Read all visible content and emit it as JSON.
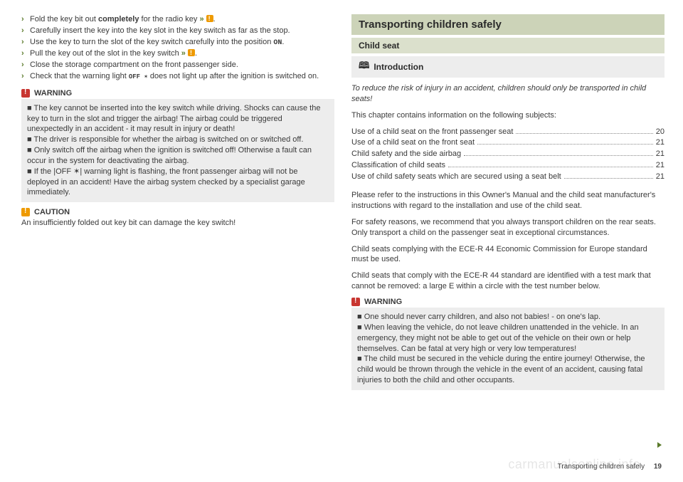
{
  "left": {
    "bullets": [
      {
        "pre": "Fold the key bit out ",
        "bold": "completely",
        "post": " for the radio key ",
        "ref": true,
        "tail": "."
      },
      {
        "pre": "Carefully insert the key into the key slot in the key switch as far as the stop.",
        "bold": "",
        "post": "",
        "ref": false,
        "tail": ""
      },
      {
        "pre": "Use the key to turn the slot of the key switch carefully into the position ",
        "mono": "ON",
        "post": ".",
        "ref": false,
        "tail": ""
      },
      {
        "pre": "Pull the key out of the slot in the key switch ",
        "bold": "",
        "post": "",
        "ref": true,
        "tail": "."
      },
      {
        "pre": "Close the storage compartment on the front passenger side.",
        "bold": "",
        "post": "",
        "ref": false,
        "tail": ""
      },
      {
        "pre": "Check that the warning light ",
        "off": "OFF ✶",
        "post": " does not light up after the ignition is switched on.",
        "ref": false,
        "tail": ""
      }
    ],
    "warning_label": "WARNING",
    "warning_items": [
      "The key cannot be inserted into the key switch while driving. Shocks can cause the key to turn in the slot and trigger the airbag! The airbag could be triggered unexpectedly in an accident - it may result in injury or death!",
      "The driver is responsible for whether the airbag is switched on or switched off.",
      "Only switch off the airbag when the ignition is switched off! Otherwise a fault can occur in the system for deactivating the airbag.",
      "If the |OFF ✶| warning light is flashing, the front passenger airbag will not be deployed in an accident! Have the airbag system checked by a specialist garage immediately."
    ],
    "caution_label": "CAUTION",
    "caution_text": "An insufficiently folded out key bit can damage the key switch!"
  },
  "right": {
    "h1": "Transporting children safely",
    "h2": "Child seat",
    "h3": "Introduction",
    "lead": "To reduce the risk of injury in an accident, children should only be transported in child seats!",
    "toc_intro": "This chapter contains information on the following subjects:",
    "toc": [
      {
        "label": "Use of a child seat on the front passenger seat",
        "page": "20"
      },
      {
        "label": "Use of a child seat on the front seat",
        "page": "21"
      },
      {
        "label": "Child safety and the side airbag",
        "page": "21"
      },
      {
        "label": "Classification of child seats",
        "page": "21"
      },
      {
        "label": "Use of child safety seats which are secured using a seat belt",
        "page": "21"
      }
    ],
    "p1": "Please refer to the instructions in this Owner's Manual and the child seat manufacturer's instructions with regard to the installation and use of the child seat.",
    "p2": "For safety reasons, we recommend that you always transport children on the rear seats. Only transport a child on the passenger seat in exceptional circumstances.",
    "p3": "Child seats complying with the ECE-R 44 Economic Commission for Europe standard must be used.",
    "p4": "Child seats that comply with the ECE-R 44 standard are identified with a test mark that cannot be removed: a large E within a circle with the test number below.",
    "warning_label": "WARNING",
    "warning_items": [
      "One should never carry children, and also not babies! - on one's lap.",
      "When leaving the vehicle, do not leave children unattended in the vehicle. In an emergency, they might not be able to get out of the vehicle on their own or help themselves. Can be fatal at very high or very low temperatures!",
      "The child must be secured in the vehicle during the entire journey! Otherwise, the child would be thrown through the vehicle in the event of an accident, causing fatal injuries to both the child and other occupants."
    ]
  },
  "footer_text": "Transporting children safely",
  "footer_page": "19",
  "watermark": "carmanualsonline.info",
  "colors": {
    "h1_bg": "#ccd3b8",
    "h2_bg": "#dbe0cc",
    "grey_bg": "#ededed",
    "accent": "#5a7a2a",
    "warn_red": "#c83530",
    "warn_orange": "#ee9a00",
    "text": "#3a3a3a"
  }
}
